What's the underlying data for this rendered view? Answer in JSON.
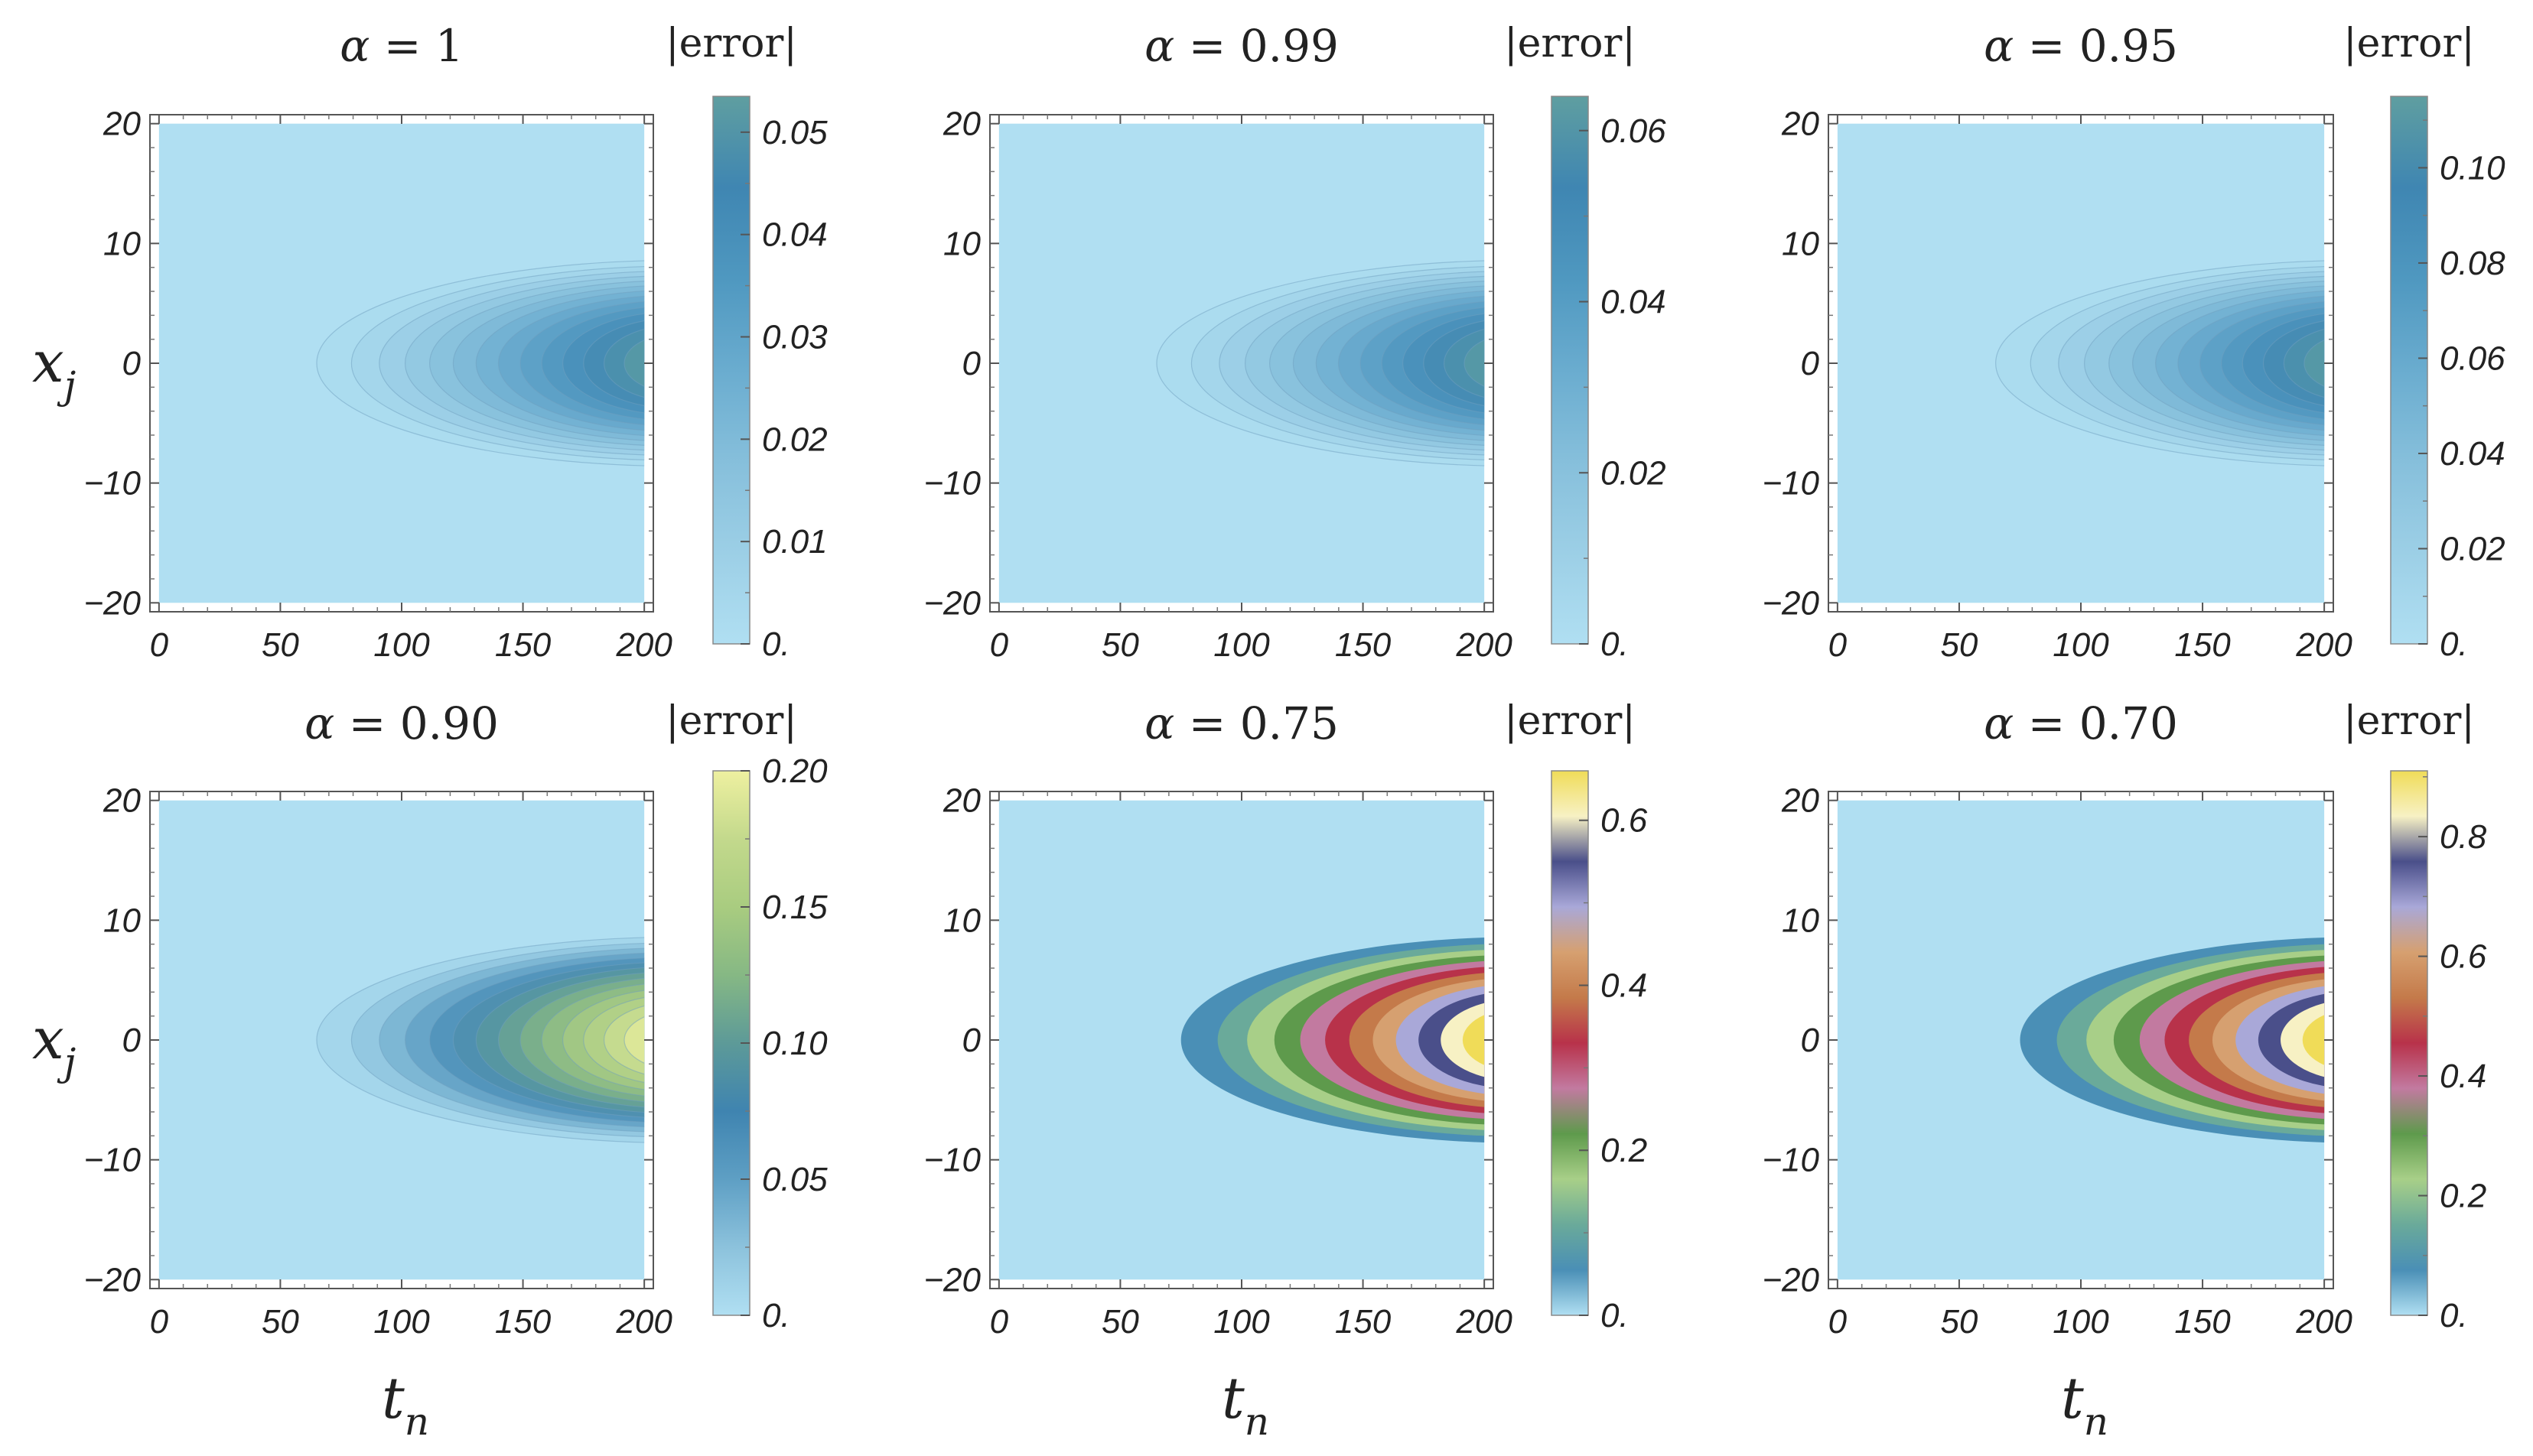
{
  "chart_data": [
    {
      "type": "contour",
      "title_symbol": "α",
      "title_value": "1",
      "colorbar_title": "|error|",
      "xticks": [
        "0",
        "50",
        "100",
        "150",
        "200"
      ],
      "yticks": [
        "20",
        "10",
        "0",
        "−10",
        "−20"
      ],
      "xlim": [
        0,
        200
      ],
      "ylim": [
        -20,
        20
      ],
      "max_error": 0.0535,
      "filled": false,
      "scheme": "blue",
      "colorbar_ticks": [
        "0.",
        "0.01",
        "0.02",
        "0.03",
        "0.04",
        "0.05"
      ],
      "colorbar_tick_values": [
        0,
        0.01,
        0.02,
        0.03,
        0.04,
        0.05
      ],
      "colorbar_max": 0.0535
    },
    {
      "type": "contour",
      "title_symbol": "α",
      "title_value": "0.99",
      "colorbar_title": "|error|",
      "xticks": [
        "0",
        "50",
        "100",
        "150",
        "200"
      ],
      "yticks": [
        "20",
        "10",
        "0",
        "−10",
        "−20"
      ],
      "xlim": [
        0,
        200
      ],
      "ylim": [
        -20,
        20
      ],
      "max_error": 0.064,
      "filled": false,
      "scheme": "blue",
      "colorbar_ticks": [
        "0.",
        "0.02",
        "0.04",
        "0.06"
      ],
      "colorbar_tick_values": [
        0,
        0.02,
        0.04,
        0.06
      ],
      "colorbar_max": 0.064
    },
    {
      "type": "contour",
      "title_symbol": "α",
      "title_value": "0.95",
      "colorbar_title": "|error|",
      "xticks": [
        "0",
        "50",
        "100",
        "150",
        "200"
      ],
      "yticks": [
        "20",
        "10",
        "0",
        "−10",
        "−20"
      ],
      "xlim": [
        0,
        200
      ],
      "ylim": [
        -20,
        20
      ],
      "max_error": 0.115,
      "filled": false,
      "scheme": "blue",
      "colorbar_ticks": [
        "0.",
        "0.02",
        "0.04",
        "0.06",
        "0.08",
        "0.10"
      ],
      "colorbar_tick_values": [
        0,
        0.02,
        0.04,
        0.06,
        0.08,
        0.1
      ],
      "colorbar_max": 0.115
    },
    {
      "type": "contour",
      "title_symbol": "α",
      "title_value": "0.90",
      "colorbar_title": "|error|",
      "xticks": [
        "0",
        "50",
        "100",
        "150",
        "200"
      ],
      "yticks": [
        "20",
        "10",
        "0",
        "−10",
        "−20"
      ],
      "xlim": [
        0,
        200
      ],
      "ylim": [
        -20,
        20
      ],
      "max_error": 0.2,
      "filled": false,
      "scheme": "bluegreen",
      "colorbar_ticks": [
        "0.",
        "0.05",
        "0.10",
        "0.15",
        "0.20"
      ],
      "colorbar_tick_values": [
        0,
        0.05,
        0.1,
        0.15,
        0.2
      ],
      "colorbar_max": 0.2
    },
    {
      "type": "contour",
      "title_symbol": "α",
      "title_value": "0.75",
      "colorbar_title": "|error|",
      "xticks": [
        "0",
        "50",
        "100",
        "150",
        "200"
      ],
      "yticks": [
        "20",
        "10",
        "0",
        "−10",
        "−20"
      ],
      "xlim": [
        0,
        200
      ],
      "ylim": [
        -20,
        20
      ],
      "max_error": 0.66,
      "filled": true,
      "scheme": "rainbow",
      "colorbar_ticks": [
        "0.",
        "0.2",
        "0.4",
        "0.6"
      ],
      "colorbar_tick_values": [
        0,
        0.2,
        0.4,
        0.6
      ],
      "colorbar_max": 0.66
    },
    {
      "type": "contour",
      "title_symbol": "α",
      "title_value": "0.70",
      "colorbar_title": "|error|",
      "xticks": [
        "0",
        "50",
        "100",
        "150",
        "200"
      ],
      "yticks": [
        "20",
        "10",
        "0",
        "−10",
        "−20"
      ],
      "xlim": [
        0,
        200
      ],
      "ylim": [
        -20,
        20
      ],
      "max_error": 0.91,
      "filled": true,
      "scheme": "rainbow",
      "colorbar_ticks": [
        "0.",
        "0.2",
        "0.4",
        "0.6",
        "0.8"
      ],
      "colorbar_tick_values": [
        0,
        0.2,
        0.4,
        0.6,
        0.8
      ],
      "colorbar_max": 0.91
    }
  ],
  "axis_labels": {
    "x_main": "t",
    "x_sub": "n",
    "y_main": "x",
    "y_sub": "j"
  },
  "colors": {
    "background_fill": "#b0dff2",
    "blue_ramp": [
      "#b0dff2",
      "#9ccfe6",
      "#86bfdb",
      "#6aaccf",
      "#4f98c0",
      "#3f86b2",
      "#5f9ea0"
    ],
    "bluegreen_ramp": [
      "#b0dff2",
      "#8cc2dc",
      "#5e9fc4",
      "#3f84b0",
      "#5d9a98",
      "#86b884",
      "#a9cc80",
      "#c3d98c",
      "#eef0a0"
    ],
    "rainbow_ramp": [
      "#b0dff2",
      "#4a8fb6",
      "#6aaa9a",
      "#a8cf88",
      "#5e9a4c",
      "#c27aa0",
      "#b8324a",
      "#c47a4a",
      "#d6a070",
      "#a9a8d8",
      "#4a4f8a",
      "#f7f1c4",
      "#f0dc58"
    ]
  }
}
